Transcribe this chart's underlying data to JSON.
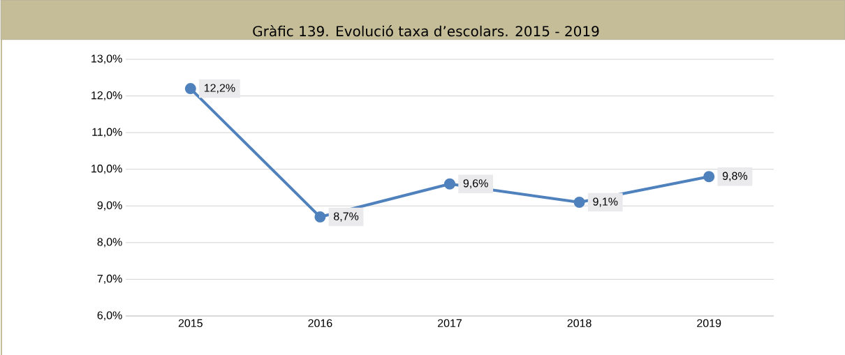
{
  "chart_data": {
    "type": "line",
    "title": "Gràfic 139. Evolució taxa d’escolars. 2015 - 2019",
    "categories": [
      "2015",
      "2016",
      "2017",
      "2018",
      "2019"
    ],
    "series": [
      {
        "color": "#4f81bd",
        "values": [
          12.2,
          8.7,
          9.6,
          9.1,
          9.8
        ],
        "value_labels": [
          "12,2%",
          "8,7%",
          "9,6%",
          "9,1%",
          "9,8%"
        ]
      }
    ],
    "ylim": [
      6,
      13
    ],
    "yticks": [
      {
        "value": 6,
        "label": "6,0%"
      },
      {
        "value": 7,
        "label": "7,0%"
      },
      {
        "value": 8,
        "label": "8,0%"
      },
      {
        "value": 9,
        "label": "9,0%"
      },
      {
        "value": 10,
        "label": "10,0%"
      },
      {
        "value": 11,
        "label": "11,0%"
      },
      {
        "value": 12,
        "label": "12,0%"
      },
      {
        "value": 13,
        "label": "13,0%"
      }
    ],
    "grid": "y",
    "marker": "circle"
  }
}
